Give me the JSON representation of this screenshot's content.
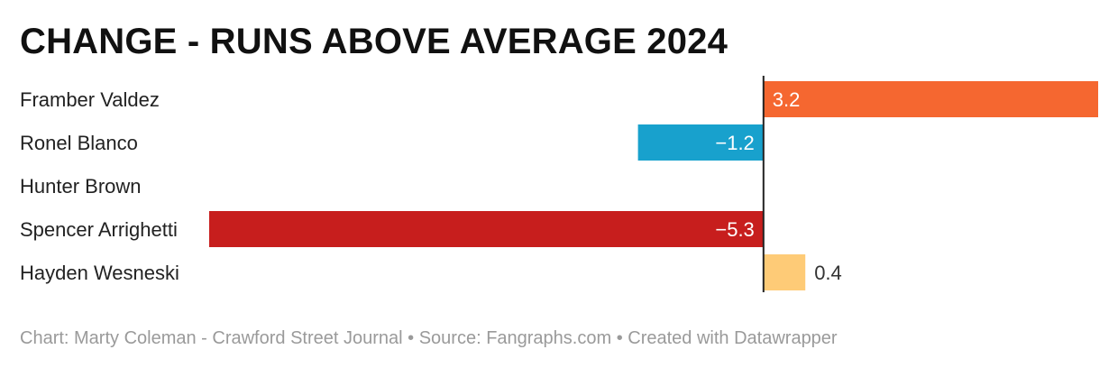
{
  "chart_data": {
    "type": "bar",
    "orientation": "horizontal",
    "title": "CHANGE - RUNS ABOVE AVERAGE 2024",
    "categories": [
      "Framber Valdez",
      "Ronel Blanco",
      "Hunter Brown",
      "Spencer Arrighetti",
      "Hayden Wesneski"
    ],
    "values": [
      3.2,
      -1.2,
      null,
      -5.3,
      0.4
    ],
    "value_labels": [
      "3.2",
      "−1.2",
      "",
      "−5.3",
      "0.4"
    ],
    "colors": [
      "#f56730",
      "#18a1cd",
      "#cccccc",
      "#c71e1d",
      "#fecb77"
    ],
    "label_colors": [
      "#ffffff",
      "#ffffff",
      "#ffffff",
      "#ffffff",
      "#333333"
    ],
    "xlim": [
      -5.3,
      3.2
    ],
    "grid": false
  },
  "footer": {
    "text": "Chart: Marty Coleman - Crawford Street Journal • Source: Fangraphs.com • Created with Datawrapper"
  }
}
